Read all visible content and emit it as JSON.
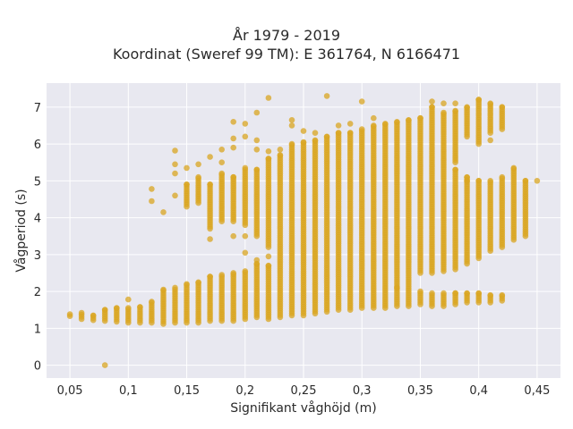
{
  "chart_data": {
    "type": "scatter",
    "title_lines": [
      "År 1979 - 2019",
      "Koordinat (Sweref 99 TM): E 361764, N 6166471"
    ],
    "xlabel": "Signifikant våghöjd (m)",
    "ylabel": "Vågperiod (s)",
    "xlim": [
      0.03,
      0.47
    ],
    "ylim": [
      -0.35,
      7.65
    ],
    "xticks": [
      0.05,
      0.1,
      0.15,
      0.2,
      0.25,
      0.3,
      0.35,
      0.4,
      0.45
    ],
    "xtick_labels": [
      "0,05",
      "0,1",
      "0,15",
      "0,2",
      "0,25",
      "0,3",
      "0,35",
      "0,4",
      "0,45"
    ],
    "yticks": [
      0,
      1,
      2,
      3,
      4,
      5,
      6,
      7
    ],
    "ytick_labels": [
      "0",
      "1",
      "2",
      "3",
      "4",
      "5",
      "6",
      "7"
    ],
    "grid": true,
    "marker_color": "#d9a521",
    "background_color": "#e8e8f0",
    "columns_note": "Hs sampled every 0.01 m; each column lists approximate vertical spans of dense points (T ranges in s) and isolated points",
    "columns": [
      {
        "hs": 0.05,
        "ranges": [
          [
            1.33,
            1.38
          ]
        ],
        "points": []
      },
      {
        "hs": 0.06,
        "ranges": [
          [
            1.25,
            1.42
          ]
        ],
        "points": []
      },
      {
        "hs": 0.07,
        "ranges": [
          [
            1.22,
            1.35
          ]
        ],
        "points": []
      },
      {
        "hs": 0.08,
        "ranges": [
          [
            1.2,
            1.5
          ]
        ],
        "points": [
          0
        ]
      },
      {
        "hs": 0.09,
        "ranges": [
          [
            1.18,
            1.55
          ]
        ],
        "points": []
      },
      {
        "hs": 0.1,
        "ranges": [
          [
            1.15,
            1.55
          ]
        ],
        "points": [
          1.78
        ]
      },
      {
        "hs": 0.11,
        "ranges": [
          [
            1.15,
            1.58
          ]
        ],
        "points": []
      },
      {
        "hs": 0.12,
        "ranges": [
          [
            1.15,
            1.72
          ]
        ],
        "points": [
          4.45,
          4.78
        ]
      },
      {
        "hs": 0.13,
        "ranges": [
          [
            1.12,
            2.05
          ]
        ],
        "points": [
          4.15
        ]
      },
      {
        "hs": 0.14,
        "ranges": [
          [
            1.15,
            2.1
          ]
        ],
        "points": [
          4.6,
          5.2,
          5.45,
          5.82
        ]
      },
      {
        "hs": 0.15,
        "ranges": [
          [
            1.15,
            2.2
          ],
          [
            4.3,
            4.9
          ]
        ],
        "points": [
          5.35
        ]
      },
      {
        "hs": 0.16,
        "ranges": [
          [
            1.15,
            2.25
          ],
          [
            4.4,
            5.1
          ]
        ],
        "points": [
          5.45
        ]
      },
      {
        "hs": 0.17,
        "ranges": [
          [
            1.2,
            2.4
          ],
          [
            3.7,
            4.9
          ]
        ],
        "points": [
          3.42,
          5.65
        ]
      },
      {
        "hs": 0.18,
        "ranges": [
          [
            1.2,
            2.45
          ],
          [
            3.9,
            5.2
          ]
        ],
        "points": [
          5.5,
          5.85
        ]
      },
      {
        "hs": 0.19,
        "ranges": [
          [
            1.2,
            2.5
          ],
          [
            3.9,
            5.1
          ]
        ],
        "points": [
          3.5,
          5.9,
          6.15,
          6.6
        ]
      },
      {
        "hs": 0.2,
        "ranges": [
          [
            1.25,
            2.55
          ],
          [
            3.8,
            5.35
          ]
        ],
        "points": [
          3.05,
          3.5,
          6.2,
          6.55
        ]
      },
      {
        "hs": 0.21,
        "ranges": [
          [
            1.3,
            2.75
          ],
          [
            3.5,
            5.3
          ]
        ],
        "points": [
          2.85,
          5.85,
          6.1,
          6.85
        ]
      },
      {
        "hs": 0.22,
        "ranges": [
          [
            1.25,
            2.7
          ],
          [
            3.2,
            5.6
          ]
        ],
        "points": [
          2.95,
          5.8,
          7.25
        ]
      },
      {
        "hs": 0.23,
        "ranges": [
          [
            1.3,
            5.7
          ]
        ],
        "points": [
          5.85
        ]
      },
      {
        "hs": 0.24,
        "ranges": [
          [
            1.35,
            6.0
          ]
        ],
        "points": [
          6.5,
          6.65
        ]
      },
      {
        "hs": 0.25,
        "ranges": [
          [
            1.35,
            6.05
          ]
        ],
        "points": [
          6.35
        ]
      },
      {
        "hs": 0.26,
        "ranges": [
          [
            1.4,
            6.1
          ]
        ],
        "points": [
          6.3
        ]
      },
      {
        "hs": 0.27,
        "ranges": [
          [
            1.45,
            6.2
          ]
        ],
        "points": [
          7.3
        ]
      },
      {
        "hs": 0.28,
        "ranges": [
          [
            1.5,
            6.3
          ]
        ],
        "points": [
          6.5
        ]
      },
      {
        "hs": 0.29,
        "ranges": [
          [
            1.5,
            6.3
          ]
        ],
        "points": [
          6.55
        ]
      },
      {
        "hs": 0.3,
        "ranges": [
          [
            1.55,
            6.4
          ]
        ],
        "points": [
          7.15
        ]
      },
      {
        "hs": 0.31,
        "ranges": [
          [
            1.55,
            6.5
          ]
        ],
        "points": [
          6.7
        ]
      },
      {
        "hs": 0.32,
        "ranges": [
          [
            1.55,
            6.55
          ]
        ],
        "points": []
      },
      {
        "hs": 0.33,
        "ranges": [
          [
            1.6,
            6.6
          ]
        ],
        "points": [
          2.1
        ]
      },
      {
        "hs": 0.34,
        "ranges": [
          [
            1.6,
            6.65
          ]
        ],
        "points": []
      },
      {
        "hs": 0.35,
        "ranges": [
          [
            1.65,
            2.0
          ],
          [
            2.5,
            6.7
          ]
        ],
        "points": []
      },
      {
        "hs": 0.36,
        "ranges": [
          [
            1.6,
            1.95
          ],
          [
            2.5,
            7.0
          ]
        ],
        "points": [
          7.15
        ]
      },
      {
        "hs": 0.37,
        "ranges": [
          [
            1.6,
            1.95
          ],
          [
            2.55,
            6.85
          ]
        ],
        "points": [
          7.1
        ]
      },
      {
        "hs": 0.38,
        "ranges": [
          [
            1.65,
            1.95
          ],
          [
            2.6,
            5.3
          ],
          [
            5.5,
            6.9
          ]
        ],
        "points": [
          7.1
        ]
      },
      {
        "hs": 0.39,
        "ranges": [
          [
            1.7,
            1.95
          ],
          [
            2.75,
            5.1
          ],
          [
            6.2,
            7.0
          ]
        ],
        "points": [
          5.0
        ]
      },
      {
        "hs": 0.4,
        "ranges": [
          [
            1.7,
            1.95
          ],
          [
            2.9,
            5.0
          ],
          [
            6.0,
            7.2
          ]
        ],
        "points": []
      },
      {
        "hs": 0.41,
        "ranges": [
          [
            1.7,
            1.9
          ],
          [
            3.1,
            5.0
          ],
          [
            6.3,
            7.1
          ]
        ],
        "points": [
          6.1
        ]
      },
      {
        "hs": 0.42,
        "ranges": [
          [
            1.75,
            1.9
          ],
          [
            3.2,
            5.1
          ],
          [
            6.4,
            7.0
          ]
        ],
        "points": []
      },
      {
        "hs": 0.43,
        "ranges": [
          [
            3.4,
            5.35
          ]
        ],
        "points": []
      },
      {
        "hs": 0.44,
        "ranges": [
          [
            3.5,
            5.0
          ]
        ],
        "points": []
      },
      {
        "hs": 0.45,
        "ranges": [],
        "points": [
          5.0
        ]
      }
    ]
  }
}
